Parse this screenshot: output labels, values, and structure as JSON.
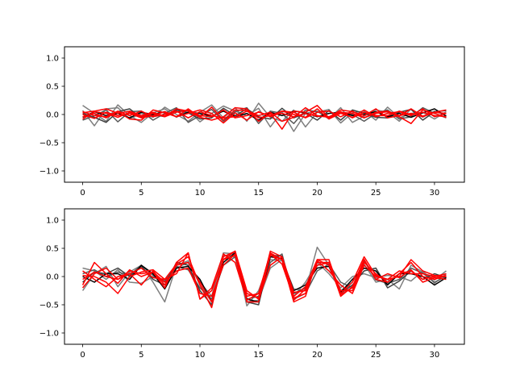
{
  "chart_data": [
    {
      "type": "line",
      "title": "",
      "xlabel": "",
      "ylabel": "",
      "xlim": [
        -1.55,
        32.55
      ],
      "ylim": [
        -1.2,
        1.2
      ],
      "xticks": [
        0,
        5,
        10,
        15,
        20,
        25,
        30
      ],
      "yticks": [
        -1.0,
        -0.5,
        0.0,
        0.5,
        1.0
      ],
      "xtick_labels": [
        "0",
        "5",
        "10",
        "15",
        "20",
        "25",
        "30"
      ],
      "ytick_labels": [
        "−1.0",
        "−0.5",
        "0.0",
        "0.5",
        "1.0"
      ],
      "grid": false,
      "x": [
        0,
        1,
        2,
        3,
        4,
        5,
        6,
        7,
        8,
        9,
        10,
        11,
        12,
        13,
        14,
        15,
        16,
        17,
        18,
        19,
        20,
        21,
        22,
        23,
        24,
        25,
        26,
        27,
        28,
        29,
        30,
        31
      ],
      "series": [
        {
          "color": "#7f7f7f",
          "values": [
            0.16,
            0.02,
            -0.12,
            0.17,
            -0.02,
            -0.14,
            0.03,
            0.1,
            -0.05,
            0.08,
            -0.13,
            0.02,
            0.15,
            0.06,
            -0.02,
            0.11,
            -0.22,
            0.05,
            -0.3,
            0.02,
            0.06,
            -0.08,
            0.12,
            -0.14,
            -0.03,
            0.08,
            0.04,
            -0.12,
            0.1,
            -0.05,
            0.06,
            -0.02
          ]
        },
        {
          "color": "#7f7f7f",
          "values": [
            0.07,
            -0.2,
            0.1,
            0.12,
            -0.08,
            0.02,
            -0.05,
            0.13,
            0.0,
            -0.12,
            0.04,
            0.17,
            -0.06,
            0.12,
            -0.12,
            0.2,
            -0.05,
            -0.12,
            0.08,
            -0.22,
            0.04,
            0.09,
            -0.15,
            0.03,
            0.06,
            -0.1,
            0.13,
            -0.06,
            0.02,
            0.04,
            -0.08,
            0.05
          ]
        },
        {
          "color": "#595959",
          "values": [
            -0.1,
            -0.02,
            0.08,
            -0.13,
            0.05,
            0.06,
            -0.1,
            0.02,
            0.12,
            -0.14,
            -0.02,
            0.09,
            -0.12,
            0.05,
            0.12,
            -0.16,
            0.06,
            0.02,
            -0.16,
            0.08,
            0.05,
            -0.05,
            0.04,
            0.0,
            -0.12,
            0.02,
            0.08,
            -0.08,
            -0.04,
            0.12,
            0.02,
            -0.06
          ]
        },
        {
          "color": "#404040",
          "values": [
            0.02,
            -0.05,
            -0.14,
            0.05,
            0.1,
            -0.06,
            0.0,
            -0.04,
            0.08,
            0.03,
            -0.08,
            -0.06,
            0.11,
            -0.02,
            0.1,
            -0.04,
            -0.08,
            0.11,
            -0.06,
            0.02,
            -0.1,
            0.07,
            -0.1,
            0.08,
            0.02,
            -0.05,
            -0.06,
            0.04,
            0.09,
            -0.1,
            0.05,
            0.07
          ]
        },
        {
          "color": "#000000",
          "values": [
            -0.05,
            0.05,
            -0.02,
            0.02,
            -0.06,
            0.04,
            0.0,
            0.05,
            -0.04,
            0.04,
            0.02,
            -0.03,
            0.06,
            -0.04,
            0.02,
            -0.1,
            0.04,
            -0.02,
            0.06,
            0.03,
            -0.04,
            0.02,
            0.04,
            -0.02,
            0.0,
            0.05,
            -0.04,
            0.02,
            -0.05,
            0.03,
            0.1,
            -0.03
          ]
        },
        {
          "color": "#ff0000",
          "values": [
            0.03,
            0.06,
            0.1,
            0.02,
            0.06,
            -0.02,
            0.04,
            -0.03,
            0.1,
            0.06,
            -0.05,
            0.13,
            -0.1,
            0.08,
            0.07,
            -0.02,
            0.04,
            -0.12,
            -0.05,
            0.12,
            -0.02,
            -0.05,
            0.08,
            0.05,
            -0.02,
            0.1,
            -0.06,
            -0.02,
            0.1,
            -0.03,
            0.04,
            0.08
          ]
        },
        {
          "color": "#ff0000",
          "values": [
            -0.04,
            0.02,
            -0.06,
            0.05,
            -0.08,
            -0.1,
            0.08,
            0.03,
            -0.04,
            0.02,
            0.08,
            0.02,
            -0.15,
            0.03,
            -0.1,
            0.05,
            -0.04,
            0.06,
            0.0,
            -0.05,
            0.1,
            -0.08,
            0.02,
            -0.05,
            0.08,
            -0.04,
            0.02,
            0.05,
            -0.02,
            0.1,
            -0.04,
            0.02
          ]
        },
        {
          "color": "#ff0000",
          "values": [
            0.0,
            -0.07,
            0.04,
            -0.02,
            0.02,
            -0.06,
            -0.02,
            0.05,
            -0.04,
            0.1,
            -0.05,
            -0.1,
            -0.04,
            0.12,
            0.1,
            -0.12,
            0.02,
            -0.26,
            0.06,
            0.04,
            0.16,
            -0.06,
            0.04,
            0.02,
            -0.06,
            0.02,
            0.05,
            -0.04,
            -0.16,
            0.08,
            0.02,
            -0.05
          ]
        },
        {
          "color": "#ff0000",
          "values": [
            -0.08,
            0.05,
            0.02,
            -0.05,
            0.04,
            -0.04,
            0.02,
            -0.04,
            0.04,
            0.08,
            -0.02,
            -0.04,
            0.08,
            -0.06,
            -0.02,
            0.04,
            -0.02,
            0.06,
            0.04,
            -0.06,
            0.04,
            0.06,
            -0.04,
            0.06,
            -0.06,
            0.04,
            0.06,
            -0.02,
            0.02,
            -0.04,
            0.04,
            0.02
          ]
        },
        {
          "color": "#ff0000",
          "values": [
            0.05,
            -0.02,
            -0.04,
            0.06,
            -0.02,
            0.06,
            -0.04,
            0.0,
            0.06,
            -0.06,
            0.05,
            -0.02,
            -0.06,
            -0.04,
            0.06,
            -0.06,
            -0.02,
            0.02,
            -0.04,
            0.02,
            -0.03,
            -0.04,
            0.05,
            -0.06,
            0.04,
            -0.02,
            -0.02,
            0.06,
            0.0,
            0.04,
            -0.02,
            -0.04
          ]
        }
      ]
    },
    {
      "type": "line",
      "title": "",
      "xlabel": "",
      "ylabel": "",
      "xlim": [
        -1.55,
        32.55
      ],
      "ylim": [
        -1.2,
        1.2
      ],
      "xticks": [
        0,
        5,
        10,
        15,
        20,
        25,
        30
      ],
      "yticks": [
        -1.0,
        -0.5,
        0.0,
        0.5,
        1.0
      ],
      "xtick_labels": [
        "0",
        "5",
        "10",
        "15",
        "20",
        "25",
        "30"
      ],
      "ytick_labels": [
        "−1.0",
        "−0.5",
        "0.0",
        "0.5",
        "1.0"
      ],
      "grid": false,
      "x": [
        0,
        1,
        2,
        3,
        4,
        5,
        6,
        7,
        8,
        9,
        10,
        11,
        12,
        13,
        14,
        15,
        16,
        17,
        18,
        19,
        20,
        21,
        22,
        23,
        24,
        25,
        26,
        27,
        28,
        29,
        30,
        31
      ],
      "series": [
        {
          "color": "#7f7f7f",
          "values": [
            -0.25,
            0.05,
            0.18,
            -0.18,
            0.08,
            0.2,
            -0.1,
            -0.45,
            0.2,
            0.28,
            -0.15,
            -0.45,
            0.38,
            0.35,
            -0.45,
            -0.42,
            0.15,
            0.3,
            -0.22,
            -0.25,
            0.52,
            0.2,
            -0.25,
            -0.1,
            0.22,
            -0.1,
            -0.05,
            -0.22,
            0.2,
            0.08,
            -0.06,
            0.1
          ]
        },
        {
          "color": "#7f7f7f",
          "values": [
            0.15,
            0.1,
            -0.05,
            0.12,
            -0.1,
            -0.12,
            0.0,
            -0.1,
            0.15,
            0.25,
            -0.1,
            -0.35,
            0.42,
            0.4,
            -0.52,
            -0.25,
            0.3,
            0.28,
            -0.35,
            -0.1,
            0.25,
            0.05,
            -0.2,
            0.0,
            0.05,
            -0.02,
            0.02,
            0.0,
            -0.08,
            0.1,
            -0.12,
            0.05
          ]
        },
        {
          "color": "#595959",
          "values": [
            0.05,
            0.12,
            0.0,
            0.08,
            0.02,
            0.2,
            0.02,
            -0.08,
            0.18,
            0.12,
            -0.2,
            -0.4,
            0.2,
            0.35,
            -0.4,
            -0.35,
            0.25,
            0.4,
            -0.4,
            -0.3,
            0.1,
            0.22,
            -0.1,
            -0.2,
            0.28,
            -0.06,
            -0.12,
            -0.05,
            0.15,
            0.06,
            -0.1,
            0.0
          ]
        },
        {
          "color": "#404040",
          "values": [
            -0.1,
            0.08,
            0.05,
            0.15,
            0.0,
            0.18,
            -0.05,
            -0.15,
            0.25,
            0.2,
            -0.25,
            -0.5,
            0.3,
            0.45,
            -0.45,
            -0.5,
            0.38,
            0.36,
            -0.3,
            -0.2,
            0.2,
            0.25,
            -0.3,
            -0.15,
            0.1,
            0.15,
            -0.2,
            -0.08,
            0.1,
            -0.05,
            0.05,
            -0.02
          ]
        },
        {
          "color": "#000000",
          "values": [
            0.0,
            -0.1,
            0.05,
            0.05,
            -0.05,
            0.2,
            0.05,
            -0.22,
            0.15,
            0.18,
            -0.05,
            -0.45,
            0.25,
            0.42,
            -0.4,
            -0.45,
            0.35,
            0.32,
            -0.25,
            -0.15,
            0.15,
            0.18,
            -0.28,
            -0.05,
            0.15,
            0.1,
            -0.15,
            0.05,
            0.05,
            0.0,
            -0.15,
            -0.02
          ]
        },
        {
          "color": "#ff0000",
          "values": [
            -0.15,
            0.25,
            0.05,
            -0.12,
            0.12,
            0.0,
            0.08,
            -0.2,
            0.25,
            0.42,
            -0.4,
            -0.25,
            0.3,
            0.45,
            -0.35,
            -0.3,
            0.42,
            0.3,
            -0.45,
            -0.35,
            0.3,
            0.3,
            -0.3,
            -0.1,
            0.35,
            0.02,
            -0.05,
            0.0,
            0.3,
            0.1,
            0.02,
            0.0
          ]
        },
        {
          "color": "#ff0000",
          "values": [
            0.1,
            -0.05,
            -0.18,
            0.0,
            0.05,
            0.15,
            -0.02,
            -0.05,
            0.22,
            0.35,
            -0.15,
            -0.55,
            0.35,
            0.45,
            -0.25,
            -0.4,
            0.2,
            0.35,
            -0.35,
            -0.18,
            0.3,
            0.2,
            -0.32,
            -0.2,
            0.3,
            -0.05,
            -0.1,
            0.05,
            0.25,
            0.0,
            -0.05,
            0.02
          ]
        },
        {
          "color": "#ff0000",
          "values": [
            -0.05,
            0.08,
            0.0,
            -0.05,
            0.1,
            0.05,
            0.08,
            -0.1,
            0.1,
            0.15,
            -0.3,
            -0.35,
            0.2,
            0.4,
            -0.3,
            -0.38,
            0.45,
            0.35,
            -0.28,
            -0.25,
            0.25,
            0.25,
            -0.25,
            -0.25,
            0.25,
            0.05,
            -0.1,
            0.05,
            0.1,
            -0.05,
            0.0,
            0.05
          ]
        },
        {
          "color": "#ff0000",
          "values": [
            0.02,
            0.0,
            -0.1,
            -0.3,
            0.0,
            0.08,
            0.12,
            -0.05,
            0.05,
            0.42,
            -0.4,
            -0.2,
            0.4,
            0.25,
            -0.42,
            -0.3,
            0.4,
            0.22,
            -0.38,
            -0.3,
            0.28,
            0.1,
            -0.15,
            -0.3,
            0.2,
            0.0,
            -0.05,
            0.1,
            0.05,
            0.05,
            0.0,
            0.0
          ]
        },
        {
          "color": "#ff0000",
          "values": [
            -0.2,
            0.05,
            0.15,
            -0.05,
            0.05,
            -0.15,
            0.1,
            -0.15,
            0.2,
            0.25,
            -0.1,
            -0.45,
            0.3,
            0.38,
            -0.45,
            -0.45,
            0.38,
            0.3,
            -0.42,
            -0.22,
            0.2,
            0.25,
            -0.35,
            -0.18,
            0.3,
            -0.05,
            0.05,
            -0.02,
            0.12,
            -0.1,
            -0.02,
            -0.05
          ]
        }
      ]
    }
  ]
}
